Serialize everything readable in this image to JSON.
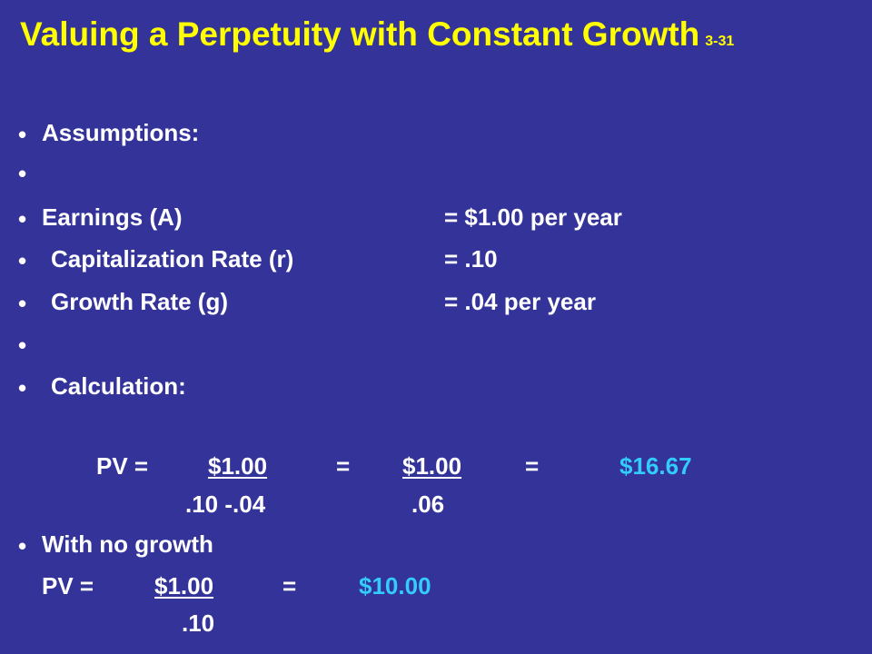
{
  "title": {
    "text": "Valuing a Perpetuity with Constant Growth",
    "slide_number": "3-31"
  },
  "assumptions_header": "Assumptions:",
  "assumptions": [
    {
      "label": "Earnings (A)",
      "value": "= $1.00 per year"
    },
    {
      "label": "Capitalization Rate (r)",
      "value": "= .10"
    },
    {
      "label": "Growth Rate (g)",
      "value": "= .04 per year"
    }
  ],
  "calculation_header": "Calculation:",
  "calculation": {
    "pv_label": "PV =",
    "numerator_1": "$1.00",
    "equals_1": "=",
    "numerator_2": "$1.00",
    "equals_2": "=",
    "result": "$16.67",
    "denominator_1": ".10 -.04",
    "denominator_2": ".06"
  },
  "no_growth_header": "With no growth",
  "no_growth": {
    "pv_label": "PV =",
    "numerator": "$1.00",
    "equals": "=",
    "result": "$10.00",
    "denominator": ".10"
  },
  "colors": {
    "background": "#333399",
    "title": "#ffff00",
    "text": "#ffffff",
    "result": "#33ccff"
  }
}
